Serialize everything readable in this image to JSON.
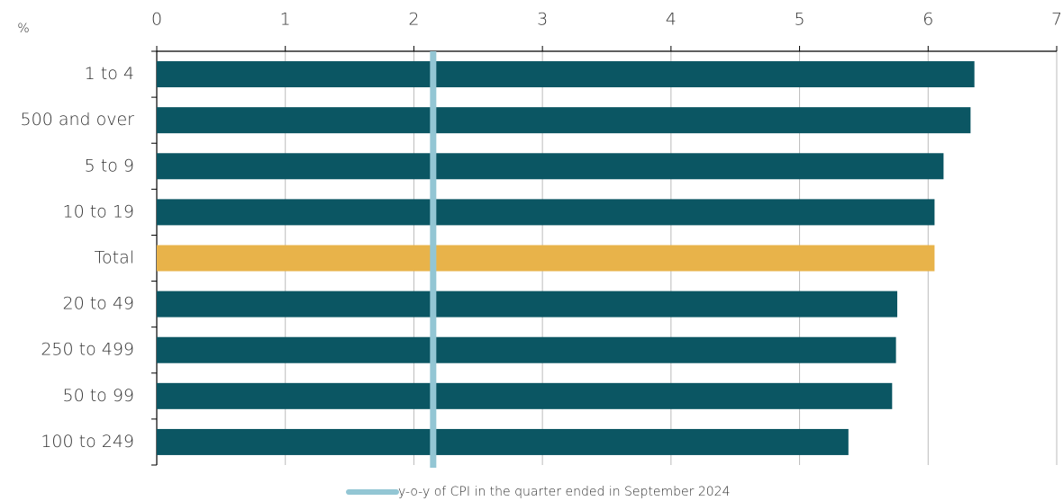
{
  "chart_data": {
    "type": "bar",
    "orientation": "horizontal",
    "unit_label": "%",
    "categories": [
      "1 to 4",
      "500 and over",
      "5 to 9",
      "10 to 19",
      "Total",
      "20 to 49",
      "250 to 499",
      "50 to 99",
      "100 to 249"
    ],
    "values": [
      6.36,
      6.33,
      6.12,
      6.05,
      6.05,
      5.76,
      5.75,
      5.72,
      5.38
    ],
    "colors": [
      "#0b5663",
      "#0b5663",
      "#0b5663",
      "#0b5663",
      "#e8b34a",
      "#0b5663",
      "#0b5663",
      "#0b5663",
      "#0b5663"
    ],
    "xlim": [
      0,
      7
    ],
    "xticks": [
      0,
      1,
      2,
      3,
      4,
      5,
      6,
      7
    ],
    "grid": true,
    "reference_line": {
      "name": "y-o-y of CPI in the quarter ended in September 2024",
      "value": 2.15,
      "color": "#93c6d4"
    },
    "legend": "bottom"
  }
}
